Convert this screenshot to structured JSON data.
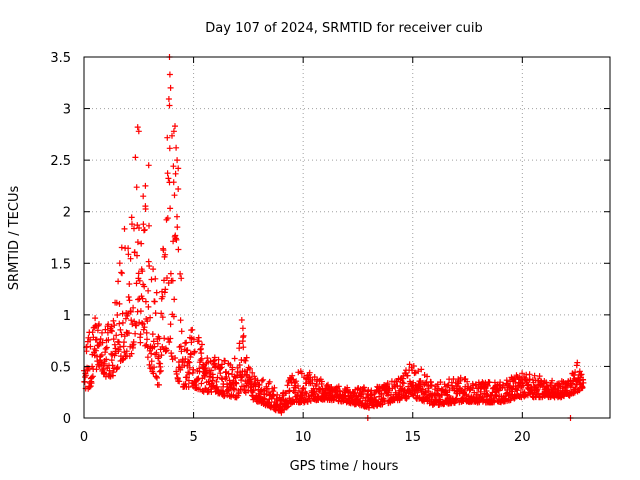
{
  "chart_data": {
    "type": "scatter",
    "title": "Day 107 of 2024, SRMTID for receiver cuib",
    "xlabel": "GPS time / hours",
    "ylabel": "SRMTID / TECUs",
    "xlim": [
      0,
      24
    ],
    "ylim": [
      0,
      3.5
    ],
    "xticks": [
      0,
      5,
      10,
      15,
      20
    ],
    "yticks": [
      0,
      0.5,
      1,
      1.5,
      2,
      2.5,
      3,
      3.5
    ],
    "xtick_labels": [
      "0",
      "5",
      "10",
      "15",
      "20"
    ],
    "ytick_labels": [
      "0",
      "0.5",
      "1",
      "1.5",
      "2",
      "2.5",
      "3",
      "3.5"
    ],
    "grid": true,
    "marker": "+",
    "series": [
      {
        "name": "SRMTID",
        "color": "#ff0000",
        "envelope": [
          [
            0.0,
            0.25,
            0.65
          ],
          [
            0.3,
            0.3,
            0.9
          ],
          [
            0.5,
            0.45,
            1.15
          ],
          [
            0.7,
            0.5,
            1.0
          ],
          [
            1.0,
            0.4,
            0.9
          ],
          [
            1.3,
            0.4,
            1.0
          ],
          [
            1.6,
            0.5,
            1.5
          ],
          [
            1.9,
            0.6,
            2.1
          ],
          [
            2.2,
            0.6,
            2.0
          ],
          [
            2.4,
            0.9,
            2.8
          ],
          [
            2.6,
            0.7,
            1.8
          ],
          [
            2.8,
            0.7,
            2.4
          ],
          [
            3.1,
            0.4,
            1.5
          ],
          [
            3.4,
            0.3,
            1.3
          ],
          [
            3.6,
            0.5,
            1.6
          ],
          [
            3.9,
            0.7,
            3.5
          ],
          [
            4.1,
            0.5,
            2.8
          ],
          [
            4.3,
            0.35,
            2.5
          ],
          [
            4.5,
            0.3,
            0.8
          ],
          [
            5.0,
            0.3,
            0.9
          ],
          [
            5.5,
            0.25,
            0.7
          ],
          [
            6.0,
            0.25,
            0.6
          ],
          [
            6.5,
            0.2,
            0.55
          ],
          [
            7.0,
            0.2,
            0.6
          ],
          [
            7.2,
            0.3,
            0.95
          ],
          [
            7.5,
            0.2,
            0.5
          ],
          [
            8.0,
            0.15,
            0.4
          ],
          [
            8.5,
            0.1,
            0.35
          ],
          [
            9.0,
            0.05,
            0.2
          ],
          [
            9.5,
            0.15,
            0.45
          ],
          [
            10.0,
            0.15,
            0.5
          ],
          [
            11.0,
            0.18,
            0.35
          ],
          [
            12.0,
            0.15,
            0.3
          ],
          [
            13.0,
            0.1,
            0.3
          ],
          [
            14.0,
            0.15,
            0.35
          ],
          [
            15.0,
            0.2,
            0.55
          ],
          [
            16.0,
            0.12,
            0.35
          ],
          [
            17.0,
            0.15,
            0.4
          ],
          [
            18.0,
            0.15,
            0.35
          ],
          [
            19.0,
            0.15,
            0.35
          ],
          [
            20.0,
            0.2,
            0.45
          ],
          [
            21.0,
            0.2,
            0.4
          ],
          [
            22.0,
            0.2,
            0.35
          ],
          [
            22.5,
            0.25,
            0.55
          ],
          [
            22.8,
            0.3,
            0.4
          ]
        ],
        "outliers": [
          [
            3.9,
            3.5
          ],
          [
            3.92,
            3.33
          ],
          [
            3.95,
            3.2
          ],
          [
            3.9,
            3.03
          ],
          [
            4.15,
            2.83
          ],
          [
            4.1,
            2.78
          ],
          [
            2.45,
            2.82
          ],
          [
            2.5,
            2.78
          ],
          [
            2.95,
            2.45
          ],
          [
            4.2,
            2.62
          ],
          [
            4.25,
            2.5
          ],
          [
            4.3,
            2.42
          ],
          [
            4.3,
            2.22
          ],
          [
            2.8,
            2.25
          ],
          [
            2.7,
            2.15
          ],
          [
            7.2,
            0.95
          ],
          [
            7.25,
            0.87
          ],
          [
            12.95,
            0.0
          ],
          [
            22.2,
            0.0
          ]
        ]
      }
    ]
  }
}
